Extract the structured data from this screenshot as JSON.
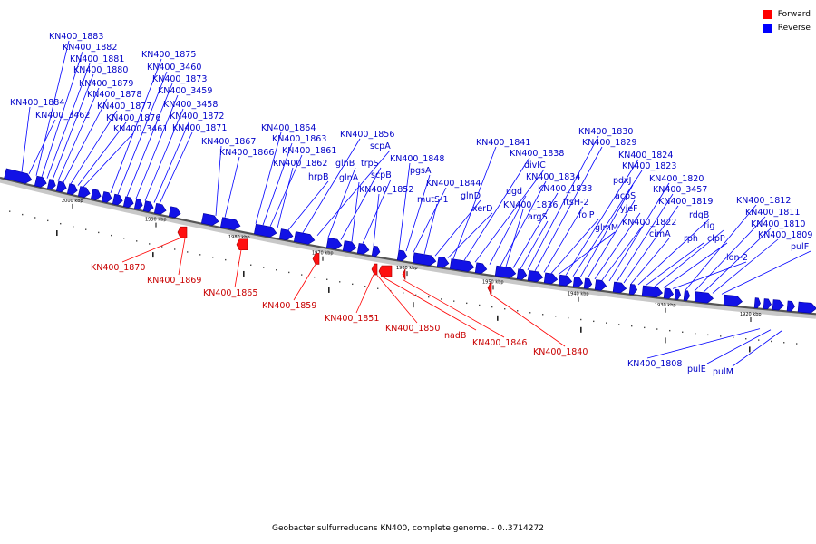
{
  "legend": [
    {
      "label": "Forward",
      "color": "#ff0000"
    },
    {
      "label": "Reverse",
      "color": "#0000ff"
    }
  ],
  "caption": "Geobacter sulfurreducens KN400, complete genome. - 0..3714272",
  "scale_labels": [
    "2000 kbp",
    "1990 kbp",
    "1980 kbp",
    "1970 kbp",
    "1960 kbp",
    "1950 kbp",
    "1940 kbp",
    "1930 kbp",
    "1920 kbp"
  ],
  "reverse_labels": [
    "KN400_1883",
    "KN400_1882",
    "KN400_1881",
    "KN400_1880",
    "KN400_1879",
    "KN400_1878",
    "KN400_1877",
    "KN400_1876",
    "KN400_1884",
    "KN400_3462",
    "KN400_3461",
    "KN400_1875",
    "KN400_3460",
    "KN400_1873",
    "KN400_3459",
    "KN400_3458",
    "KN400_1872",
    "KN400_1871",
    "KN400_1867",
    "KN400_1866",
    "KN400_1864",
    "KN400_1863",
    "KN400_1861",
    "KN400_1862",
    "hrpB",
    "KN400_1856",
    "scpA",
    "glnB",
    "trpS",
    "glnA",
    "scpB",
    "KN400_1852",
    "KN400_1848",
    "pgsA",
    "KN400_1844",
    "mutS-1",
    "glnD",
    "xerD",
    "KN400_1841",
    "KN400_1838",
    "divIC",
    "ugd",
    "KN400_1834",
    "KN400_1836",
    "KN400_1833",
    "argS",
    "KN400_1830",
    "KN400_1829",
    "ftsH-2",
    "folP",
    "glmM",
    "KN400_1824",
    "KN400_1823",
    "pdxJ",
    "acpS",
    "yjeF",
    "KN400_1822",
    "KN400_1820",
    "KN400_3457",
    "KN400_1819",
    "cimA",
    "rdgB",
    "rph",
    "tig",
    "clpP",
    "lon-2",
    "KN400_1812",
    "KN400_1811",
    "KN400_1810",
    "KN400_1809",
    "pulF",
    "KN400_1808",
    "pulE",
    "pulM"
  ],
  "forward_labels": [
    "KN400_1870",
    "KN400_1869",
    "KN400_1865",
    "KN400_1859",
    "KN400_1851",
    "KN400_1850",
    "nadB",
    "KN400_1846",
    "KN400_1840"
  ]
}
